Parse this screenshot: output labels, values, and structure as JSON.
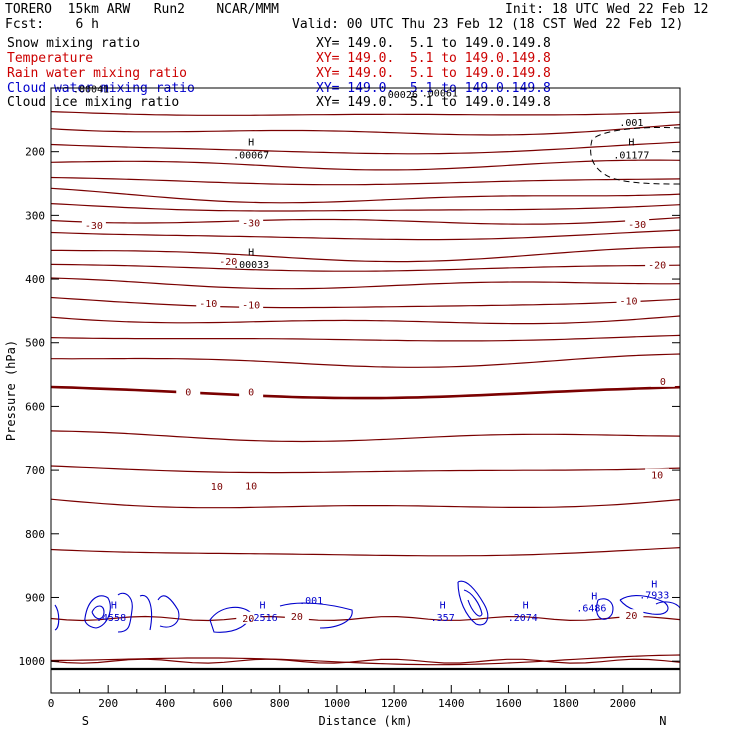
{
  "header": {
    "title": "TORERO  15km ARW   Run2    NCAR/MMM",
    "init": "Init: 18 UTC Wed 22 Feb 12",
    "fcst": "Fcst:    6 h",
    "valid": "Valid: 00 UTC Thu 23 Feb 12 (18 CST Wed 22 Feb 12)"
  },
  "fields": [
    {
      "name": "Snow mixing ratio",
      "xy": "XY= 149.0.  5.1 to 149.0.149.8",
      "color": "#000000"
    },
    {
      "name": "Temperature",
      "xy": "XY= 149.0.  5.1 to 149.0.149.8",
      "color": "#cc0000"
    },
    {
      "name": "Rain water mixing ratio",
      "xy": "XY= 149.0.  5.1 to 149.0.149.8",
      "color": "#cc0000"
    },
    {
      "name": "Cloud water mixing ratio",
      "xy": "XY= 149.0.  5.1 to 149.0.149.8",
      "color": "#0000cc"
    },
    {
      "name": "Cloud ice mixing ratio",
      "xy": "XY= 149.0.  5.1 to 149.0.149.8",
      "color": "#000000"
    }
  ],
  "chart_data": {
    "type": "contour-cross-section",
    "xlabel": "Distance (km)",
    "ylabel": "Pressure (hPa)",
    "xlim": [
      0,
      2200
    ],
    "ylim": [
      1050,
      100
    ],
    "x_ticks": [
      0,
      200,
      400,
      600,
      800,
      1000,
      1200,
      1400,
      1600,
      1800,
      2000
    ],
    "y_ticks": [
      200,
      300,
      400,
      500,
      600,
      700,
      800,
      900,
      1000
    ],
    "endpoints": {
      "left": "S",
      "right": "N"
    },
    "colors": {
      "temperature": "#7a0000",
      "cloud_water": "#0000cc",
      "snow": "#000000"
    },
    "temperature_contours_hPa_at_start": [
      137,
      160,
      187,
      216,
      242,
      262,
      282,
      305,
      325,
      353,
      378,
      403,
      430,
      458,
      490,
      522,
      570,
      643,
      695,
      745,
      823,
      995
    ],
    "temperature_labels": [
      {
        "x": 150,
        "p": 318,
        "text": "-30"
      },
      {
        "x": 700,
        "p": 314,
        "text": "-30"
      },
      {
        "x": 2050,
        "p": 317,
        "text": "-30"
      },
      {
        "x": 620,
        "p": 375,
        "text": "-20"
      },
      {
        "x": 2120,
        "p": 380,
        "text": "-20"
      },
      {
        "x": 550,
        "p": 441,
        "text": "-10"
      },
      {
        "x": 700,
        "p": 443,
        "text": "-10"
      },
      {
        "x": 2020,
        "p": 437,
        "text": "-10"
      },
      {
        "x": 480,
        "p": 580,
        "text": "0"
      },
      {
        "x": 700,
        "p": 580,
        "text": "0"
      },
      {
        "x": 2140,
        "p": 563,
        "text": "0"
      },
      {
        "x": 580,
        "p": 728,
        "text": "10"
      },
      {
        "x": 700,
        "p": 727,
        "text": "10"
      },
      {
        "x": 2120,
        "p": 710,
        "text": "10"
      },
      {
        "x": 690,
        "p": 935,
        "text": "20"
      },
      {
        "x": 860,
        "p": 932,
        "text": "20"
      },
      {
        "x": 2030,
        "p": 931,
        "text": "20"
      }
    ],
    "extrema_labels": [
      {
        "x": 140,
        "p": 107,
        "text": ".00041",
        "color": "#000000"
      },
      {
        "x": 1220,
        "p": 116,
        "text": ".00026",
        "color": "#000000"
      },
      {
        "x": 1360,
        "p": 113,
        "text": ".00061",
        "color": "#000000"
      },
      {
        "x": 700,
        "p": 190,
        "text": "H",
        "color": "#000000"
      },
      {
        "x": 700,
        "p": 211,
        "text": ".00067",
        "color": "#000000"
      },
      {
        "x": 2030,
        "p": 160,
        "text": ".001",
        "color": "#000000"
      },
      {
        "x": 2030,
        "p": 190,
        "text": "H",
        "color": "#000000"
      },
      {
        "x": 2030,
        "p": 211,
        "text": ".01177",
        "color": "#000000"
      },
      {
        "x": 700,
        "p": 363,
        "text": "H",
        "color": "#000000"
      },
      {
        "x": 700,
        "p": 383,
        "text": ".00033",
        "color": "#000000"
      },
      {
        "x": 220,
        "p": 917,
        "text": "H",
        "color": "#0000cc"
      },
      {
        "x": 210,
        "p": 937,
        "text": ".4558",
        "color": "#0000cc"
      },
      {
        "x": 740,
        "p": 917,
        "text": "H",
        "color": "#0000cc"
      },
      {
        "x": 740,
        "p": 937,
        "text": ".2516",
        "color": "#0000cc"
      },
      {
        "x": 910,
        "p": 910,
        "text": ".001",
        "color": "#0000cc"
      },
      {
        "x": 1370,
        "p": 917,
        "text": "H",
        "color": "#0000cc"
      },
      {
        "x": 1370,
        "p": 937,
        "text": ".357",
        "color": "#0000cc"
      },
      {
        "x": 1660,
        "p": 917,
        "text": "H",
        "color": "#0000cc"
      },
      {
        "x": 1650,
        "p": 937,
        "text": ".2074",
        "color": "#0000cc"
      },
      {
        "x": 1900,
        "p": 903,
        "text": "H",
        "color": "#0000cc"
      },
      {
        "x": 1890,
        "p": 922,
        "text": ".6486",
        "color": "#0000cc"
      },
      {
        "x": 2110,
        "p": 884,
        "text": "H",
        "color": "#0000cc"
      },
      {
        "x": 2110,
        "p": 902,
        "text": ".7933",
        "color": "#0000cc"
      }
    ]
  }
}
